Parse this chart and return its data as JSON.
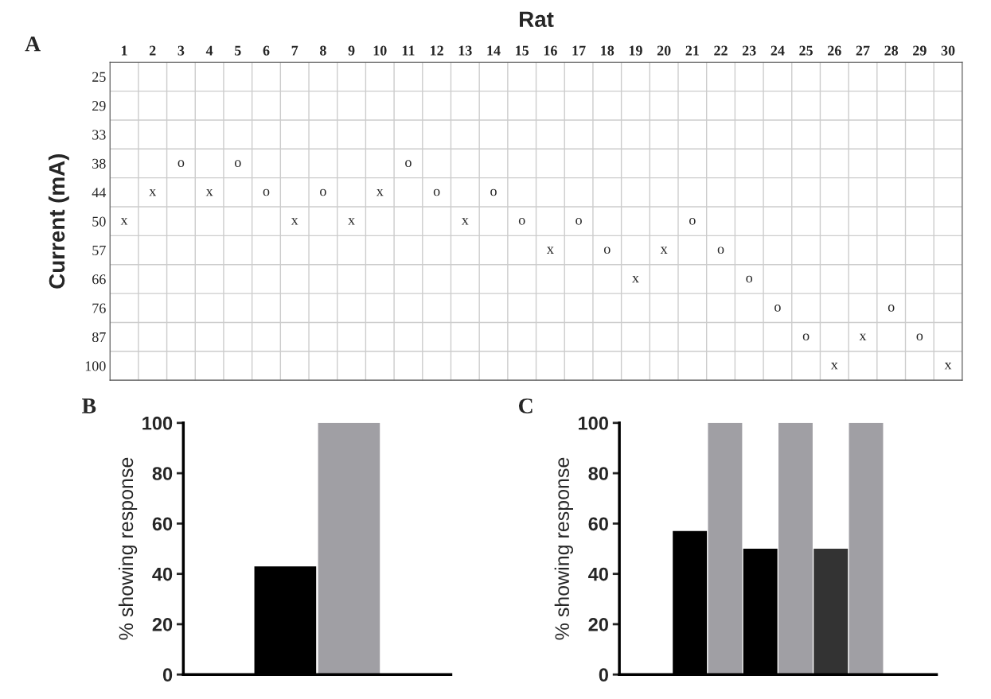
{
  "chart_data": [
    {
      "type": "heatmap",
      "title": "Rat",
      "ylabel": "Current (mA)",
      "annotations": [
        "A"
      ],
      "grid": true,
      "categories": [
        "1",
        "2",
        "3",
        "4",
        "5",
        "6",
        "7",
        "8",
        "9",
        "10",
        "11",
        "12",
        "13",
        "14",
        "15",
        "16",
        "17",
        "18",
        "19",
        "20",
        "21",
        "22",
        "23",
        "24",
        "25",
        "26",
        "27",
        "28",
        "29",
        "30"
      ],
      "y_categories": [
        "25",
        "29",
        "33",
        "38",
        "44",
        "50",
        "57",
        "66",
        "76",
        "87",
        "100"
      ],
      "cells": [
        [
          null,
          null,
          null,
          null,
          null,
          null,
          null,
          null,
          null,
          null,
          null,
          null,
          null,
          null,
          null,
          null,
          null,
          null,
          null,
          null,
          null,
          null,
          null,
          null,
          null,
          null,
          null,
          null,
          null,
          null
        ],
        [
          null,
          null,
          null,
          null,
          null,
          null,
          null,
          null,
          null,
          null,
          null,
          null,
          null,
          null,
          null,
          null,
          null,
          null,
          null,
          null,
          null,
          null,
          null,
          null,
          null,
          null,
          null,
          null,
          null,
          null
        ],
        [
          null,
          null,
          null,
          null,
          null,
          null,
          null,
          null,
          null,
          null,
          null,
          null,
          null,
          null,
          null,
          null,
          null,
          null,
          null,
          null,
          null,
          null,
          null,
          null,
          null,
          null,
          null,
          null,
          null,
          null
        ],
        [
          null,
          null,
          "o",
          null,
          "o",
          null,
          null,
          null,
          null,
          null,
          "o",
          null,
          null,
          null,
          null,
          null,
          null,
          null,
          null,
          null,
          null,
          null,
          null,
          null,
          null,
          null,
          null,
          null,
          null,
          null
        ],
        [
          null,
          "x",
          null,
          "x",
          null,
          "o",
          null,
          "o",
          null,
          "x",
          null,
          "o",
          null,
          "o",
          null,
          null,
          null,
          null,
          null,
          null,
          null,
          null,
          null,
          null,
          null,
          null,
          null,
          null,
          null,
          null
        ],
        [
          "x",
          null,
          null,
          null,
          null,
          null,
          "x",
          null,
          "x",
          null,
          null,
          null,
          "x",
          null,
          "o",
          null,
          "o",
          null,
          null,
          null,
          "o",
          null,
          null,
          null,
          null,
          null,
          null,
          null,
          null,
          null
        ],
        [
          null,
          null,
          null,
          null,
          null,
          null,
          null,
          null,
          null,
          null,
          null,
          null,
          null,
          null,
          null,
          "x",
          null,
          "o",
          null,
          "x",
          null,
          "o",
          null,
          null,
          null,
          null,
          null,
          null,
          null,
          null
        ],
        [
          null,
          null,
          null,
          null,
          null,
          null,
          null,
          null,
          null,
          null,
          null,
          null,
          null,
          null,
          null,
          null,
          null,
          null,
          "x",
          null,
          null,
          null,
          "o",
          null,
          null,
          null,
          null,
          null,
          null,
          null
        ],
        [
          null,
          null,
          null,
          null,
          null,
          null,
          null,
          null,
          null,
          null,
          null,
          null,
          null,
          null,
          null,
          null,
          null,
          null,
          null,
          null,
          null,
          null,
          null,
          "o",
          null,
          null,
          null,
          "o",
          null,
          null
        ],
        [
          null,
          null,
          null,
          null,
          null,
          null,
          null,
          null,
          null,
          null,
          null,
          null,
          null,
          null,
          null,
          null,
          null,
          null,
          null,
          null,
          null,
          null,
          null,
          null,
          "o",
          null,
          "x",
          null,
          "o",
          null
        ],
        [
          null,
          null,
          null,
          null,
          null,
          null,
          null,
          null,
          null,
          null,
          null,
          null,
          null,
          null,
          null,
          null,
          null,
          null,
          null,
          null,
          null,
          null,
          null,
          null,
          null,
          "x",
          null,
          null,
          null,
          "x"
        ]
      ]
    },
    {
      "type": "bar",
      "ylabel": "% showing response",
      "annotations": [
        "B"
      ],
      "categories": [
        null,
        null
      ],
      "values": [
        43,
        100
      ],
      "colors": [
        "#000000",
        "#a09fa4"
      ],
      "ylim": [
        0,
        100
      ],
      "yticks": [
        0,
        20,
        40,
        60,
        80,
        100
      ]
    },
    {
      "type": "bar",
      "ylabel": "% showing response",
      "annotations": [
        "C"
      ],
      "categories": [
        null,
        null,
        null,
        null,
        null,
        null
      ],
      "values": [
        57,
        100,
        50,
        100,
        50,
        100
      ],
      "colors": [
        "#000000",
        "#a09fa4",
        "#000000",
        "#a09fa4",
        "#333333",
        "#a09fa4"
      ],
      "ylim": [
        0,
        100
      ],
      "yticks": [
        0,
        20,
        40,
        60,
        80,
        100
      ]
    }
  ]
}
